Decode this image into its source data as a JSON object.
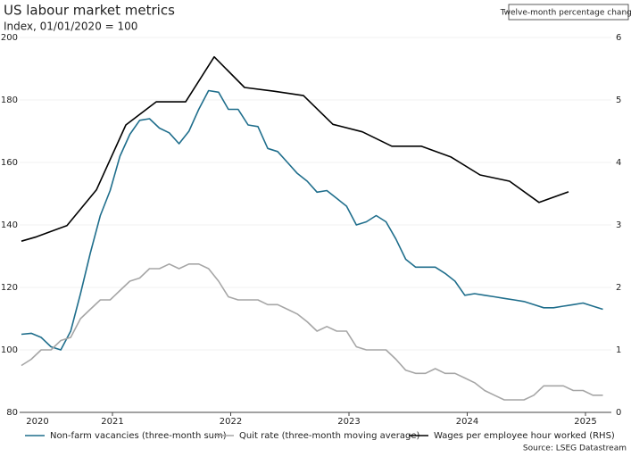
{
  "chart_data": {
    "type": "line",
    "title": "US labour market metrics",
    "subtitle": "Index, 01/01/2020 = 100",
    "annotation": "Twelve-month percentage change",
    "source": "Source: LSEG Datastream",
    "x": [
      2020.23,
      2020.313,
      2020.397,
      2020.48,
      2020.563,
      2020.647,
      2020.73,
      2020.813,
      2020.897,
      2020.98,
      2021.063,
      2021.147,
      2021.23,
      2021.313,
      2021.397,
      2021.48,
      2021.563,
      2021.647,
      2021.73,
      2021.813,
      2021.897,
      2021.98,
      2022.063,
      2022.147,
      2022.23,
      2022.313,
      2022.397,
      2022.48,
      2022.563,
      2022.647,
      2022.73,
      2022.813,
      2022.897,
      2022.98,
      2023.063,
      2023.147,
      2023.23,
      2023.313,
      2023.397,
      2023.48,
      2023.563,
      2023.647,
      2023.73,
      2023.813,
      2023.897,
      2023.98,
      2024.063,
      2024.147,
      2024.23,
      2024.313,
      2024.397,
      2024.48,
      2024.563,
      2024.647,
      2024.73,
      2024.813,
      2024.897,
      2024.98,
      2025.063,
      2025.147
    ],
    "series": [
      {
        "name": "Non-farm vacancies (three-month sum)",
        "color": "#1f6e8c",
        "values": [
          105,
          105.3,
          104,
          101,
          100,
          106,
          118,
          131,
          143,
          151,
          162,
          169,
          173.5,
          174,
          171,
          169.5,
          166,
          170,
          177,
          183,
          182.5,
          177,
          177,
          172,
          171.5,
          164.5,
          163.5,
          160,
          156.5,
          154,
          150.5,
          151,
          148.5,
          146,
          140,
          141,
          143,
          141,
          135.5,
          129,
          126.5,
          126.5,
          126.5,
          124.5,
          122,
          117.5,
          118,
          117.5,
          117,
          116.5,
          116,
          115.5,
          114.5,
          113.5,
          113.5,
          114,
          114.5,
          115,
          114,
          113
        ]
      },
      {
        "name": "Quit rate (three-month moving average)",
        "color": "#a6a6a6",
        "values": [
          95,
          97,
          100,
          100,
          103,
          104,
          110,
          113,
          116,
          116,
          119,
          122,
          123,
          126,
          126,
          127.5,
          126,
          127.5,
          127.5,
          126,
          122,
          117,
          116,
          116,
          116,
          114.5,
          114.5,
          113,
          111.5,
          109,
          106,
          107.5,
          106,
          106,
          101,
          100,
          100,
          100,
          97,
          93.5,
          92.5,
          92.5,
          94,
          92.5,
          92.5,
          91,
          89.5,
          87,
          85.5,
          84,
          84,
          84,
          85.5,
          88.5,
          88.5,
          88.5,
          87,
          87,
          85.5,
          85.5
        ]
      },
      {
        "name": "Wages per employee hour worked (RHS)",
        "color": "#000000",
        "axis": "y2",
        "x": [
          2020.23,
          2020.358,
          2020.615,
          2020.864,
          2021.113,
          2021.37,
          2021.619,
          2021.86,
          2022.117,
          2022.366,
          2022.615,
          2022.864,
          2023.113,
          2023.362,
          2023.611,
          2023.86,
          2024.109,
          2024.358,
          2024.608,
          2024.857
        ],
        "values": [
          2.74,
          2.81,
          2.99,
          3.56,
          4.6,
          4.97,
          4.97,
          5.69,
          5.2,
          5.14,
          5.07,
          4.61,
          4.49,
          4.26,
          4.26,
          4.09,
          3.8,
          3.7,
          3.36,
          3.53
        ]
      }
    ],
    "xlim": [
      2020.215,
      2025.219
    ],
    "xticks": [
      2020,
      2021,
      2022,
      2023,
      2024,
      2025
    ],
    "ylim": [
      80,
      200
    ],
    "yticks": [
      80,
      100,
      120,
      140,
      160,
      180,
      200
    ],
    "y2lim": [
      0,
      6
    ],
    "y2ticks": [
      0,
      1,
      2,
      3,
      4,
      5,
      6
    ],
    "grid": true
  }
}
